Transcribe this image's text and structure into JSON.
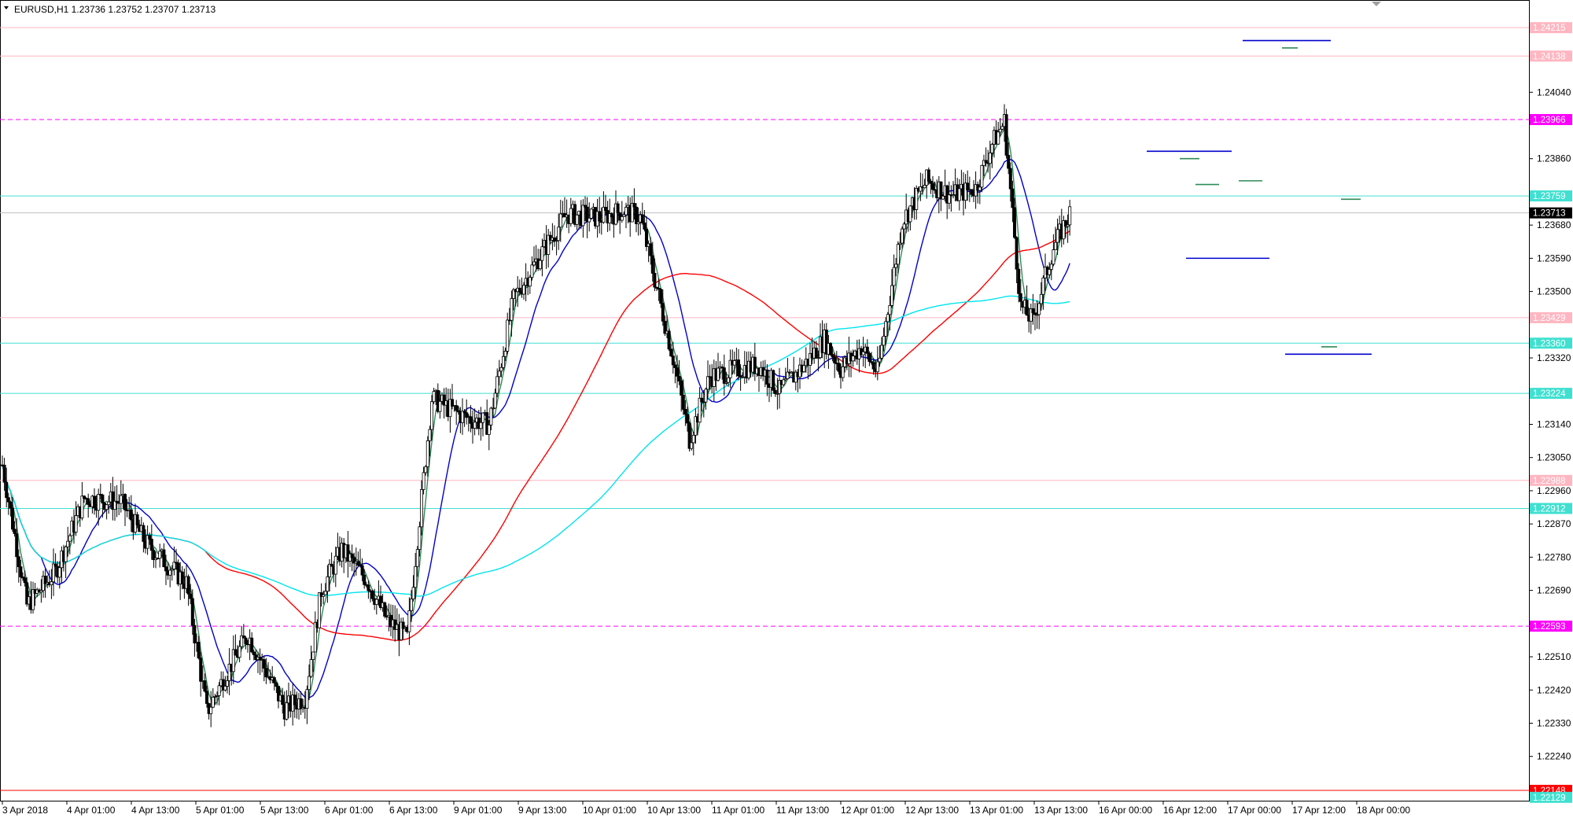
{
  "header": {
    "symbol_text": "EURUSD,H1  1.23736 1.23752 1.23707 1.23713"
  },
  "chart_data": {
    "type": "candlestick",
    "title": "EURUSD,H1  1.23736 1.23752 1.23707 1.23713",
    "ylim": [
      1.2212,
      1.2429
    ],
    "y_ticks": [
      "1.24040",
      "1.23860",
      "1.23680",
      "1.23590",
      "1.23500",
      "1.23320",
      "1.23140",
      "1.23050",
      "1.22960",
      "1.22870",
      "1.22780",
      "1.22690",
      "1.22510",
      "1.22420",
      "1.22330",
      "1.22240"
    ],
    "x_ticks": [
      "3 Apr 2018",
      "4 Apr 01:00",
      "4 Apr 13:00",
      "5 Apr 01:00",
      "5 Apr 13:00",
      "6 Apr 01:00",
      "6 Apr 13:00",
      "9 Apr 01:00",
      "9 Apr 13:00",
      "10 Apr 01:00",
      "10 Apr 13:00",
      "11 Apr 01:00",
      "11 Apr 13:00",
      "12 Apr 01:00",
      "12 Apr 13:00",
      "13 Apr 01:00",
      "13 Apr 13:00",
      "16 Apr 00:00",
      "16 Apr 12:00",
      "17 Apr 00:00",
      "17 Apr 12:00",
      "18 Apr 00:00"
    ],
    "price_labels": [
      {
        "text": "1.24215",
        "value": 1.24215,
        "color": "#ffb6c1",
        "line": true,
        "line_color": "#ffb6c1"
      },
      {
        "text": "1.24138",
        "value": 1.24138,
        "color": "#ffb6c1",
        "line": true,
        "line_color": "#ffb6c1"
      },
      {
        "text": "1.23966",
        "value": 1.23966,
        "color": "#ff00ff",
        "line": true,
        "line_color": "#ff00ff",
        "dashed": true
      },
      {
        "text": "1.23759",
        "value": 1.23759,
        "color": "#40e0d0",
        "line": true,
        "line_color": "#40e0d0"
      },
      {
        "text": "1.23713",
        "value": 1.23713,
        "color": "#000000",
        "line": true,
        "line_color": "#c0c0c0"
      },
      {
        "text": "1.23429",
        "value": 1.23429,
        "color": "#ffb6c1",
        "line": true,
        "line_color": "#ffb6c1"
      },
      {
        "text": "1.23360",
        "value": 1.2336,
        "color": "#40e0d0",
        "line": true,
        "line_color": "#40e0d0"
      },
      {
        "text": "1.23224",
        "value": 1.23224,
        "color": "#40e0d0",
        "line": true,
        "line_color": "#40e0d0"
      },
      {
        "text": "1.22988",
        "value": 1.22988,
        "color": "#ffb6c1",
        "line": true,
        "line_color": "#ffb6c1"
      },
      {
        "text": "1.22912",
        "value": 1.22912,
        "color": "#40e0d0",
        "line": true,
        "line_color": "#40e0d0"
      },
      {
        "text": "1.22593",
        "value": 1.22593,
        "color": "#ff00ff",
        "line": true,
        "line_color": "#ff00ff",
        "dashed": true
      },
      {
        "text": "1.22148",
        "value": 1.22148,
        "color": "#ff0000",
        "line": true,
        "line_color": "#ff0000"
      },
      {
        "text": "1.22129",
        "value": 1.22129,
        "color": "#40e0d0",
        "line": false
      }
    ],
    "ma_colors": {
      "fast": "#2e8b57",
      "mid": "#0000cd",
      "slow": "#ff0000",
      "long": "#00e5ee"
    },
    "candle_colors": {
      "up": "#ffffff",
      "down": "#000000",
      "wick": "#000000"
    },
    "axis_color": "#000000",
    "grid": false
  }
}
